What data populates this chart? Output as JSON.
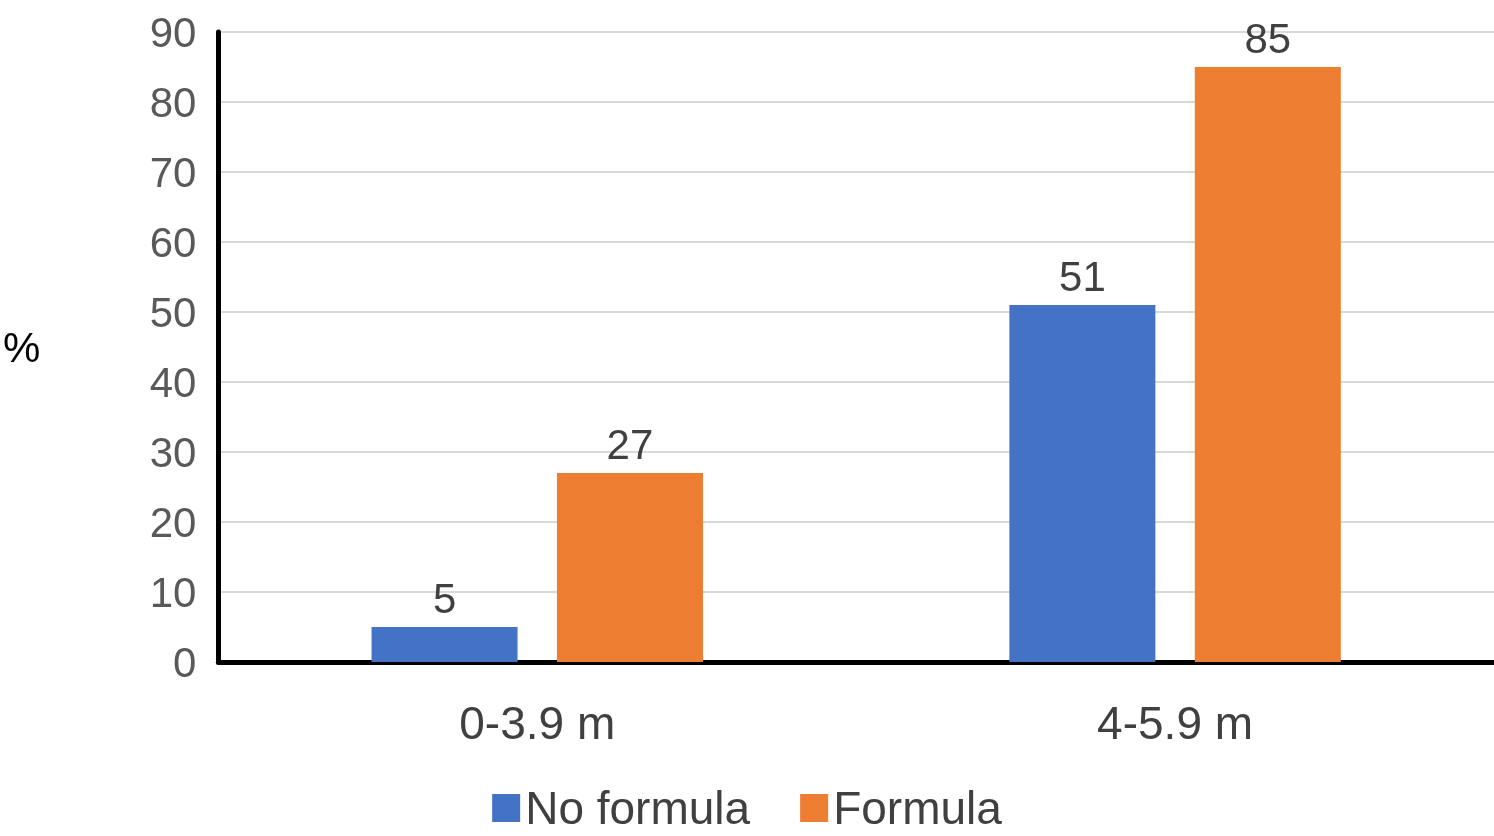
{
  "chart_data": {
    "type": "bar",
    "ylabel": "%",
    "categories": [
      "0-3.9 m",
      "4-5.9 m"
    ],
    "series": [
      {
        "name": "No formula",
        "color": "#4472c4",
        "values": [
          5,
          51
        ]
      },
      {
        "name": "Formula",
        "color": "#ed7d31",
        "values": [
          27,
          85
        ]
      }
    ],
    "ylim": [
      0,
      90
    ],
    "yticks": [
      0,
      10,
      20,
      30,
      40,
      50,
      60,
      70,
      80,
      90
    ],
    "grid": "y",
    "legend": "bottom",
    "data_labels": true
  }
}
